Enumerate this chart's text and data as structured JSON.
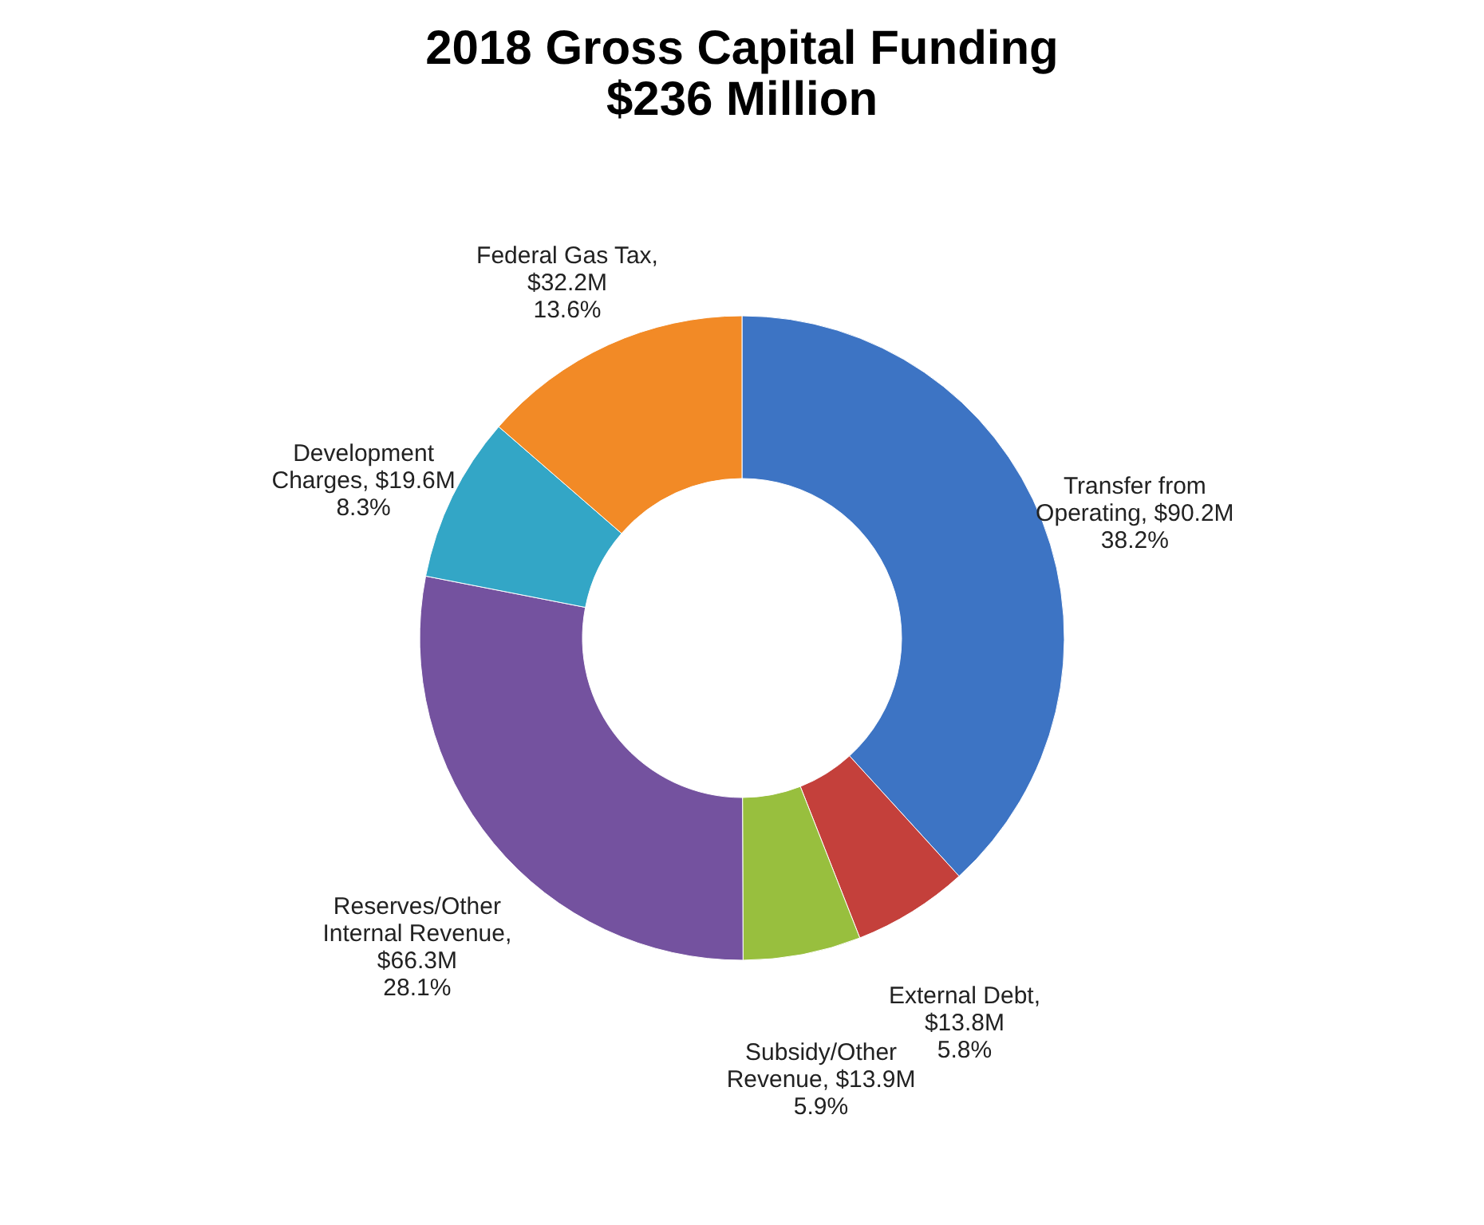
{
  "chart_data": {
    "type": "donut",
    "title": "2018 Gross Capital Funding\n$236 Million",
    "categories": [
      "Transfer from Operating, $90.2M",
      "External Debt, $13.8M",
      "Subsidy/Other Revenue, $13.9M",
      "Reserves/Other Internal Revenue, $66.3M",
      "Development Charges, $19.6M",
      "Federal Gas Tax, $32.2M"
    ],
    "values": [
      38.2,
      5.8,
      5.9,
      28.1,
      8.3,
      13.6
    ],
    "value_labels": [
      "38.2%",
      "5.8%",
      "5.9%",
      "28.1%",
      "8.3%",
      "13.6%"
    ],
    "colors": [
      "#3d74c4",
      "#c4403b",
      "#98bf3e",
      "#74529f",
      "#33a6c6",
      "#f28a26"
    ],
    "legend": false
  }
}
